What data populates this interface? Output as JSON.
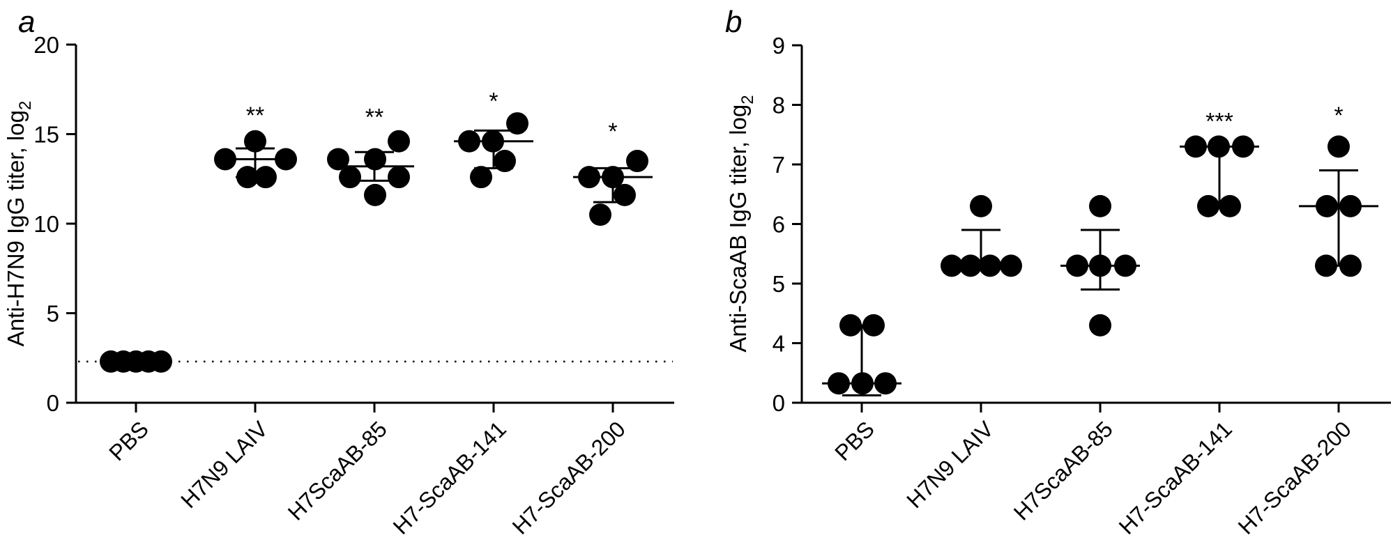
{
  "colors": {
    "foreground": "#000000",
    "background": "#ffffff"
  },
  "chart_data": [
    {
      "type": "scatter",
      "panel_label": "a",
      "title": "",
      "xlabel": "",
      "ylabel": "Anti-H7N9 IgG titer, log",
      "ylabel_subscript": "2",
      "ylim": [
        0,
        20
      ],
      "yticks": [
        0,
        5,
        10,
        15,
        20
      ],
      "axis_break": null,
      "reference_line": 2.3,
      "grid": false,
      "legend": null,
      "categories": [
        "PBS",
        "H7N9 LAIV",
        "H7ScaAB-85",
        "H7-ScaAB-141",
        "H7-ScaAB-200"
      ],
      "groups": [
        {
          "category": "PBS",
          "points": [
            {
              "dx": -36,
              "v": 2.3
            },
            {
              "dx": -18,
              "v": 2.3
            },
            {
              "dx": 0,
              "v": 2.3
            },
            {
              "dx": 18,
              "v": 2.3
            },
            {
              "dx": 36,
              "v": 2.3
            }
          ],
          "median": null,
          "whisker_low": null,
          "whisker_high": null,
          "significance": null,
          "sig_v": null
        },
        {
          "category": "H7N9 LAIV",
          "points": [
            {
              "dx": 0,
              "v": 14.6
            },
            {
              "dx": -43,
              "v": 13.6
            },
            {
              "dx": 44,
              "v": 13.6
            },
            {
              "dx": -11,
              "v": 12.6
            },
            {
              "dx": 15,
              "v": 12.6
            }
          ],
          "median": 13.6,
          "whisker_low": 12.6,
          "whisker_high": 14.2,
          "significance": "**",
          "sig_v": 16.3
        },
        {
          "category": "H7ScaAB-85",
          "points": [
            {
              "dx": 35,
              "v": 14.6
            },
            {
              "dx": -52,
              "v": 13.6
            },
            {
              "dx": 1,
              "v": 13.6
            },
            {
              "dx": -35,
              "v": 12.6
            },
            {
              "dx": 35,
              "v": 12.6
            },
            {
              "dx": 1,
              "v": 11.6
            }
          ],
          "median": 13.2,
          "whisker_low": 12.4,
          "whisker_high": 14.0,
          "significance": "**",
          "sig_v": 16.2
        },
        {
          "category": "H7-ScaAB-141",
          "points": [
            {
              "dx": 34,
              "v": 15.6
            },
            {
              "dx": -35,
              "v": 14.6
            },
            {
              "dx": -1,
              "v": 14.6
            },
            {
              "dx": 16,
              "v": 13.5
            },
            {
              "dx": -18,
              "v": 12.6
            }
          ],
          "median": 14.6,
          "whisker_low": 13.1,
          "whisker_high": 15.2,
          "significance": "*",
          "sig_v": 17.1
        },
        {
          "category": "H7-ScaAB-200",
          "points": [
            {
              "dx": 35,
              "v": 13.5
            },
            {
              "dx": -34,
              "v": 12.6
            },
            {
              "dx": 0,
              "v": 12.6
            },
            {
              "dx": 17,
              "v": 11.6
            },
            {
              "dx": -18,
              "v": 10.5
            }
          ],
          "median": 12.6,
          "whisker_low": 11.2,
          "whisker_high": 13.1,
          "significance": "*",
          "sig_v": 15.4
        }
      ]
    },
    {
      "type": "scatter",
      "panel_label": "b",
      "title": "",
      "xlabel": "",
      "ylabel": "Anti-ScaAB IgG titer, log",
      "ylabel_subscript": "2",
      "ylim": [
        0,
        9
      ],
      "yticks": [
        0,
        4,
        5,
        6,
        7,
        8,
        9
      ],
      "axis_break": {
        "compressed_below": 4
      },
      "reference_line": null,
      "grid": false,
      "legend": null,
      "categories": [
        "PBS",
        "H7N9 LAIV",
        "H7ScaAB-85",
        "H7-ScaAB-141",
        "H7-ScaAB-200"
      ],
      "groups": [
        {
          "category": "PBS",
          "points": [
            {
              "dx": -16,
              "v": 4.3
            },
            {
              "dx": 17,
              "v": 4.3
            },
            {
              "dx": -33,
              "v": 1.3
            },
            {
              "dx": 1,
              "v": 1.3
            },
            {
              "dx": 34,
              "v": 1.3
            }
          ],
          "median": 1.3,
          "whisker_low": 0.5,
          "whisker_high": 4.3,
          "significance": null,
          "sig_v": null
        },
        {
          "category": "H7N9 LAIV",
          "points": [
            {
              "dx": 0,
              "v": 6.3
            },
            {
              "dx": -42,
              "v": 5.3
            },
            {
              "dx": -15,
              "v": 5.3
            },
            {
              "dx": 13,
              "v": 5.3
            },
            {
              "dx": 43,
              "v": 5.3
            }
          ],
          "median": 5.3,
          "whisker_low": null,
          "whisker_high": 5.9,
          "significance": null,
          "sig_v": null
        },
        {
          "category": "H7ScaAB-85",
          "points": [
            {
              "dx": 0,
              "v": 6.3
            },
            {
              "dx": -33,
              "v": 5.3
            },
            {
              "dx": 0,
              "v": 5.3
            },
            {
              "dx": 36,
              "v": 5.3
            },
            {
              "dx": 0,
              "v": 4.3
            }
          ],
          "median": 5.3,
          "whisker_low": 4.9,
          "whisker_high": 5.9,
          "significance": null,
          "sig_v": null
        },
        {
          "category": "H7-ScaAB-141",
          "points": [
            {
              "dx": -34,
              "v": 7.3
            },
            {
              "dx": -1,
              "v": 7.3
            },
            {
              "dx": 34,
              "v": 7.3
            },
            {
              "dx": -16,
              "v": 6.3
            },
            {
              "dx": 15,
              "v": 6.3
            }
          ],
          "median": 7.3,
          "whisker_low": 6.3,
          "whisker_high": null,
          "significance": "***",
          "sig_v": 7.8
        },
        {
          "category": "H7-ScaAB-200",
          "points": [
            {
              "dx": 0,
              "v": 7.3
            },
            {
              "dx": -17,
              "v": 6.3
            },
            {
              "dx": 17,
              "v": 6.3
            },
            {
              "dx": -18,
              "v": 5.3
            },
            {
              "dx": 17,
              "v": 5.3
            }
          ],
          "median": 6.3,
          "whisker_low": 5.3,
          "whisker_high": 6.9,
          "significance": "*",
          "sig_v": 7.9
        }
      ]
    }
  ]
}
